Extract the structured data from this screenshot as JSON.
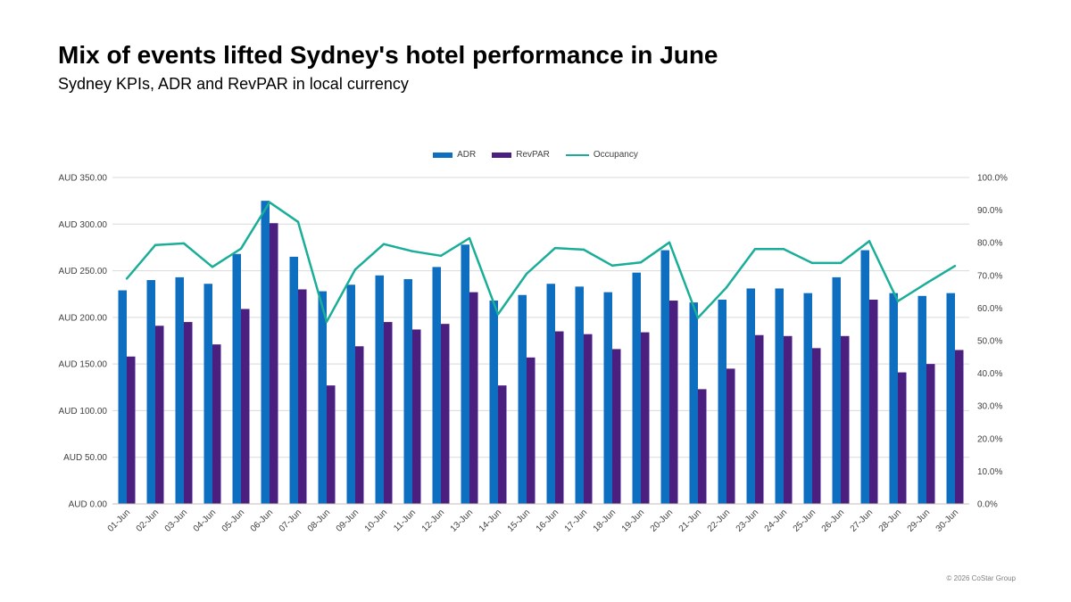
{
  "title": "Mix of events lifted Sydney's hotel performance in June",
  "subtitle": "Sydney KPIs, ADR and RevPAR in local currency",
  "copyright": "© 2026 CoStar Group",
  "colors": {
    "adr": "#0E6EBF",
    "revpar": "#4B1F7F",
    "occupancy": "#1AAE98",
    "grid": "#D9D9D9",
    "axis_text": "#404040"
  },
  "chart_data": {
    "type": "bar",
    "categories": [
      "01-Jun",
      "02-Jun",
      "03-Jun",
      "04-Jun",
      "05-Jun",
      "06-Jun",
      "07-Jun",
      "08-Jun",
      "09-Jun",
      "10-Jun",
      "11-Jun",
      "12-Jun",
      "13-Jun",
      "14-Jun",
      "15-Jun",
      "16-Jun",
      "17-Jun",
      "18-Jun",
      "19-Jun",
      "20-Jun",
      "21-Jun",
      "22-Jun",
      "23-Jun",
      "24-Jun",
      "25-Jun",
      "26-Jun",
      "27-Jun",
      "28-Jun",
      "29-Jun",
      "30-Jun"
    ],
    "series": [
      {
        "name": "ADR",
        "type": "bar",
        "axis": "left",
        "values": [
          229,
          240,
          243,
          236,
          268,
          325,
          265,
          228,
          235,
          245,
          241,
          254,
          278,
          218,
          224,
          236,
          233,
          227,
          248,
          272,
          216,
          219,
          231,
          231,
          226,
          243,
          272,
          226,
          223,
          226
        ]
      },
      {
        "name": "RevPAR",
        "type": "bar",
        "axis": "left",
        "values": [
          158,
          191,
          195,
          171,
          209,
          301,
          230,
          127,
          169,
          195,
          187,
          193,
          227,
          127,
          157,
          185,
          182,
          166,
          184,
          218,
          123,
          145,
          181,
          180,
          167,
          180,
          219,
          141,
          150,
          165
        ]
      },
      {
        "name": "Occupancy",
        "type": "line",
        "axis": "right",
        "values": [
          69.0,
          79.3,
          79.8,
          72.6,
          78.2,
          92.4,
          86.4,
          55.8,
          71.8,
          79.6,
          77.4,
          76.0,
          81.4,
          58.1,
          70.5,
          78.4,
          77.9,
          73.0,
          74.0,
          80.1,
          57.0,
          66.3,
          78.1,
          78.1,
          73.8,
          73.8,
          80.5,
          62.1,
          67.6,
          72.9
        ]
      }
    ],
    "y_left": {
      "min": 0,
      "max": 350,
      "step": 50,
      "tick_labels": [
        "AUD 0.00",
        "AUD 50.00",
        "AUD 100.00",
        "AUD 150.00",
        "AUD 200.00",
        "AUD 250.00",
        "AUD 300.00",
        "AUD 350.00"
      ]
    },
    "y_right": {
      "min": 0,
      "max": 100,
      "step": 10,
      "tick_labels": [
        "0.0%",
        "10.0%",
        "20.0%",
        "30.0%",
        "40.0%",
        "50.0%",
        "60.0%",
        "70.0%",
        "80.0%",
        "90.0%",
        "100.0%"
      ]
    },
    "grid": true,
    "legend_position": "top-center"
  }
}
